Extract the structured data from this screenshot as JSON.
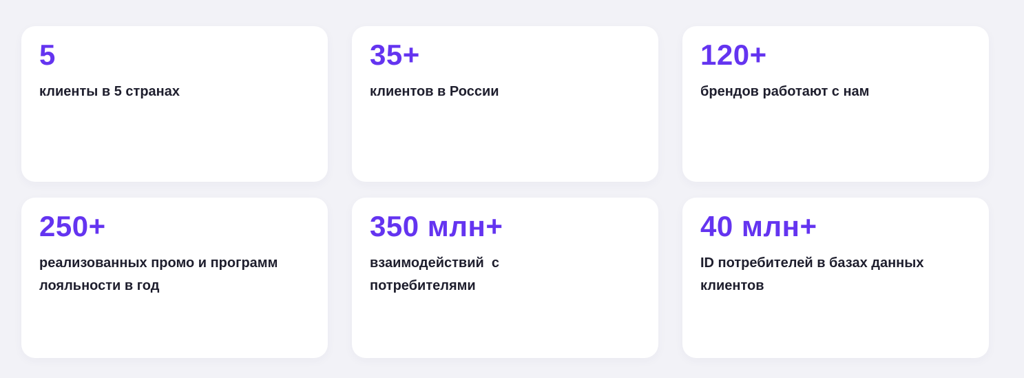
{
  "theme": {
    "background": "#f2f2f7",
    "card_background": "#ffffff",
    "accent": "#6434f0",
    "text": "#1e1e2d"
  },
  "stats": [
    {
      "value": "5",
      "label": "клиенты в 5 странах"
    },
    {
      "value": "35+",
      "label": "клиентов в России"
    },
    {
      "value": "120+",
      "label": "брендов работают с нам"
    },
    {
      "value": "250+",
      "label": "реализованных промо и программ\nлояльности в год"
    },
    {
      "value": "350 млн+",
      "label": "взаимодействий  с\nпотребителями"
    },
    {
      "value": "40 млн+",
      "label": "ID потребителей в базах данных\nклиентов"
    }
  ]
}
